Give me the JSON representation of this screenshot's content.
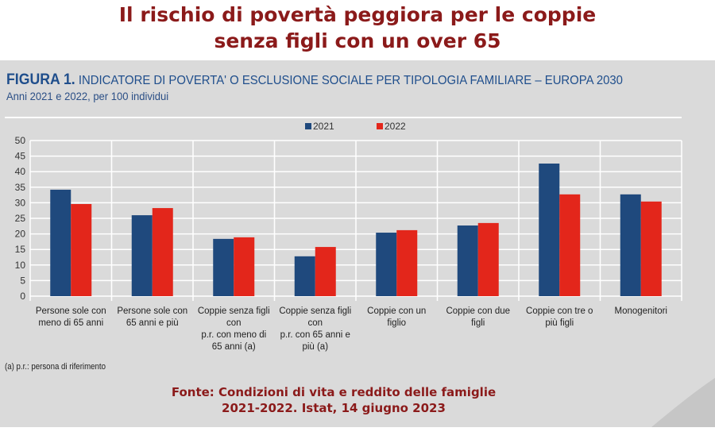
{
  "headline": [
    "Il rischio di povertà peggiora per le coppie",
    "senza figli con un over 65"
  ],
  "figure": {
    "label": "FIGURA 1.",
    "title": "INDICATORE DI POVERTA' O ESCLUSIONE SOCIALE PER TIPOLOGIA FAMILIARE – EUROPA 2030",
    "subtitle": "Anni 2021 e 2022, per 100 individui",
    "note": "(a) p.r.: persona di riferimento"
  },
  "source": [
    "Fonte: Condizioni di vita e reddito delle famiglie",
    "2021-2022. Istat, 14 giugno 2023"
  ],
  "chart_data": {
    "type": "bar",
    "categories": [
      [
        "Persone sole con",
        "meno di 65 anni"
      ],
      [
        "Persone sole con",
        "65 anni e più"
      ],
      [
        "Coppie senza figli",
        "con",
        "p.r. con meno di",
        "65 anni (a)"
      ],
      [
        "Coppie senza figli",
        "con",
        "p.r. con 65 anni e",
        "più (a)"
      ],
      [
        "Coppie con un",
        "figlio"
      ],
      [
        "Coppie con due",
        "figli"
      ],
      [
        "Coppie con tre o",
        "più figli"
      ],
      [
        "Monogenitori"
      ]
    ],
    "series": [
      {
        "name": "2021",
        "color": "#1f497d",
        "values": [
          34.2,
          26.0,
          18.4,
          12.8,
          20.4,
          22.7,
          42.6,
          32.7
        ]
      },
      {
        "name": "2022",
        "color": "#e3261b",
        "values": [
          29.6,
          28.3,
          18.9,
          15.8,
          21.2,
          23.5,
          32.7,
          30.4
        ]
      }
    ],
    "ylim": [
      0,
      50
    ],
    "yticks": [
      0,
      5,
      10,
      15,
      20,
      25,
      30,
      35,
      40,
      45,
      50
    ],
    "grid": true,
    "legend": "top-center"
  }
}
